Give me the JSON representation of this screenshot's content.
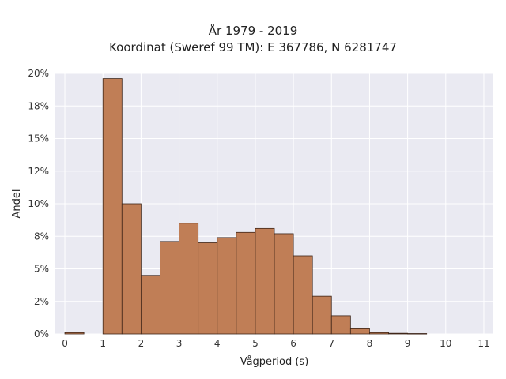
{
  "chart_data": {
    "type": "bar",
    "title": "År 1979 - 2019",
    "subtitle": "Koordinat (Sweref 99 TM): E 367786, N 6281747",
    "xlabel": "Vågperiod (s)",
    "ylabel": "Andel",
    "bin_width": 0.5,
    "bins": [
      {
        "x0": 0.0,
        "value": 0.1
      },
      {
        "x0": 0.5,
        "value": 0.0
      },
      {
        "x0": 1.0,
        "value": 19.6
      },
      {
        "x0": 1.5,
        "value": 10.0
      },
      {
        "x0": 2.0,
        "value": 4.5
      },
      {
        "x0": 2.5,
        "value": 7.1
      },
      {
        "x0": 3.0,
        "value": 8.5
      },
      {
        "x0": 3.5,
        "value": 7.0
      },
      {
        "x0": 4.0,
        "value": 7.4
      },
      {
        "x0": 4.5,
        "value": 7.8
      },
      {
        "x0": 5.0,
        "value": 8.1
      },
      {
        "x0": 5.5,
        "value": 7.7
      },
      {
        "x0": 6.0,
        "value": 6.0
      },
      {
        "x0": 6.5,
        "value": 2.9
      },
      {
        "x0": 7.0,
        "value": 1.4
      },
      {
        "x0": 7.5,
        "value": 0.4
      },
      {
        "x0": 8.0,
        "value": 0.1
      },
      {
        "x0": 8.5,
        "value": 0.05
      },
      {
        "x0": 9.0,
        "value": 0.03
      }
    ],
    "xlim": [
      -0.25,
      11.25
    ],
    "ylim": [
      0,
      20
    ],
    "x_ticks": [
      0,
      1,
      2,
      3,
      4,
      5,
      6,
      7,
      8,
      9,
      10,
      11
    ],
    "y_tick_values": [
      0,
      2.5,
      5,
      7.5,
      10,
      12.5,
      15,
      17.5,
      20
    ],
    "y_tick_labels": [
      "0%",
      "2%",
      "5%",
      "8%",
      "10%",
      "12%",
      "15%",
      "18%",
      "20%"
    ],
    "grid": true,
    "colors": {
      "bar_fill": "#c07e56",
      "bar_edge": "#3d2417",
      "plot_bg": "#eaeaf2",
      "grid": "#ffffff"
    }
  }
}
